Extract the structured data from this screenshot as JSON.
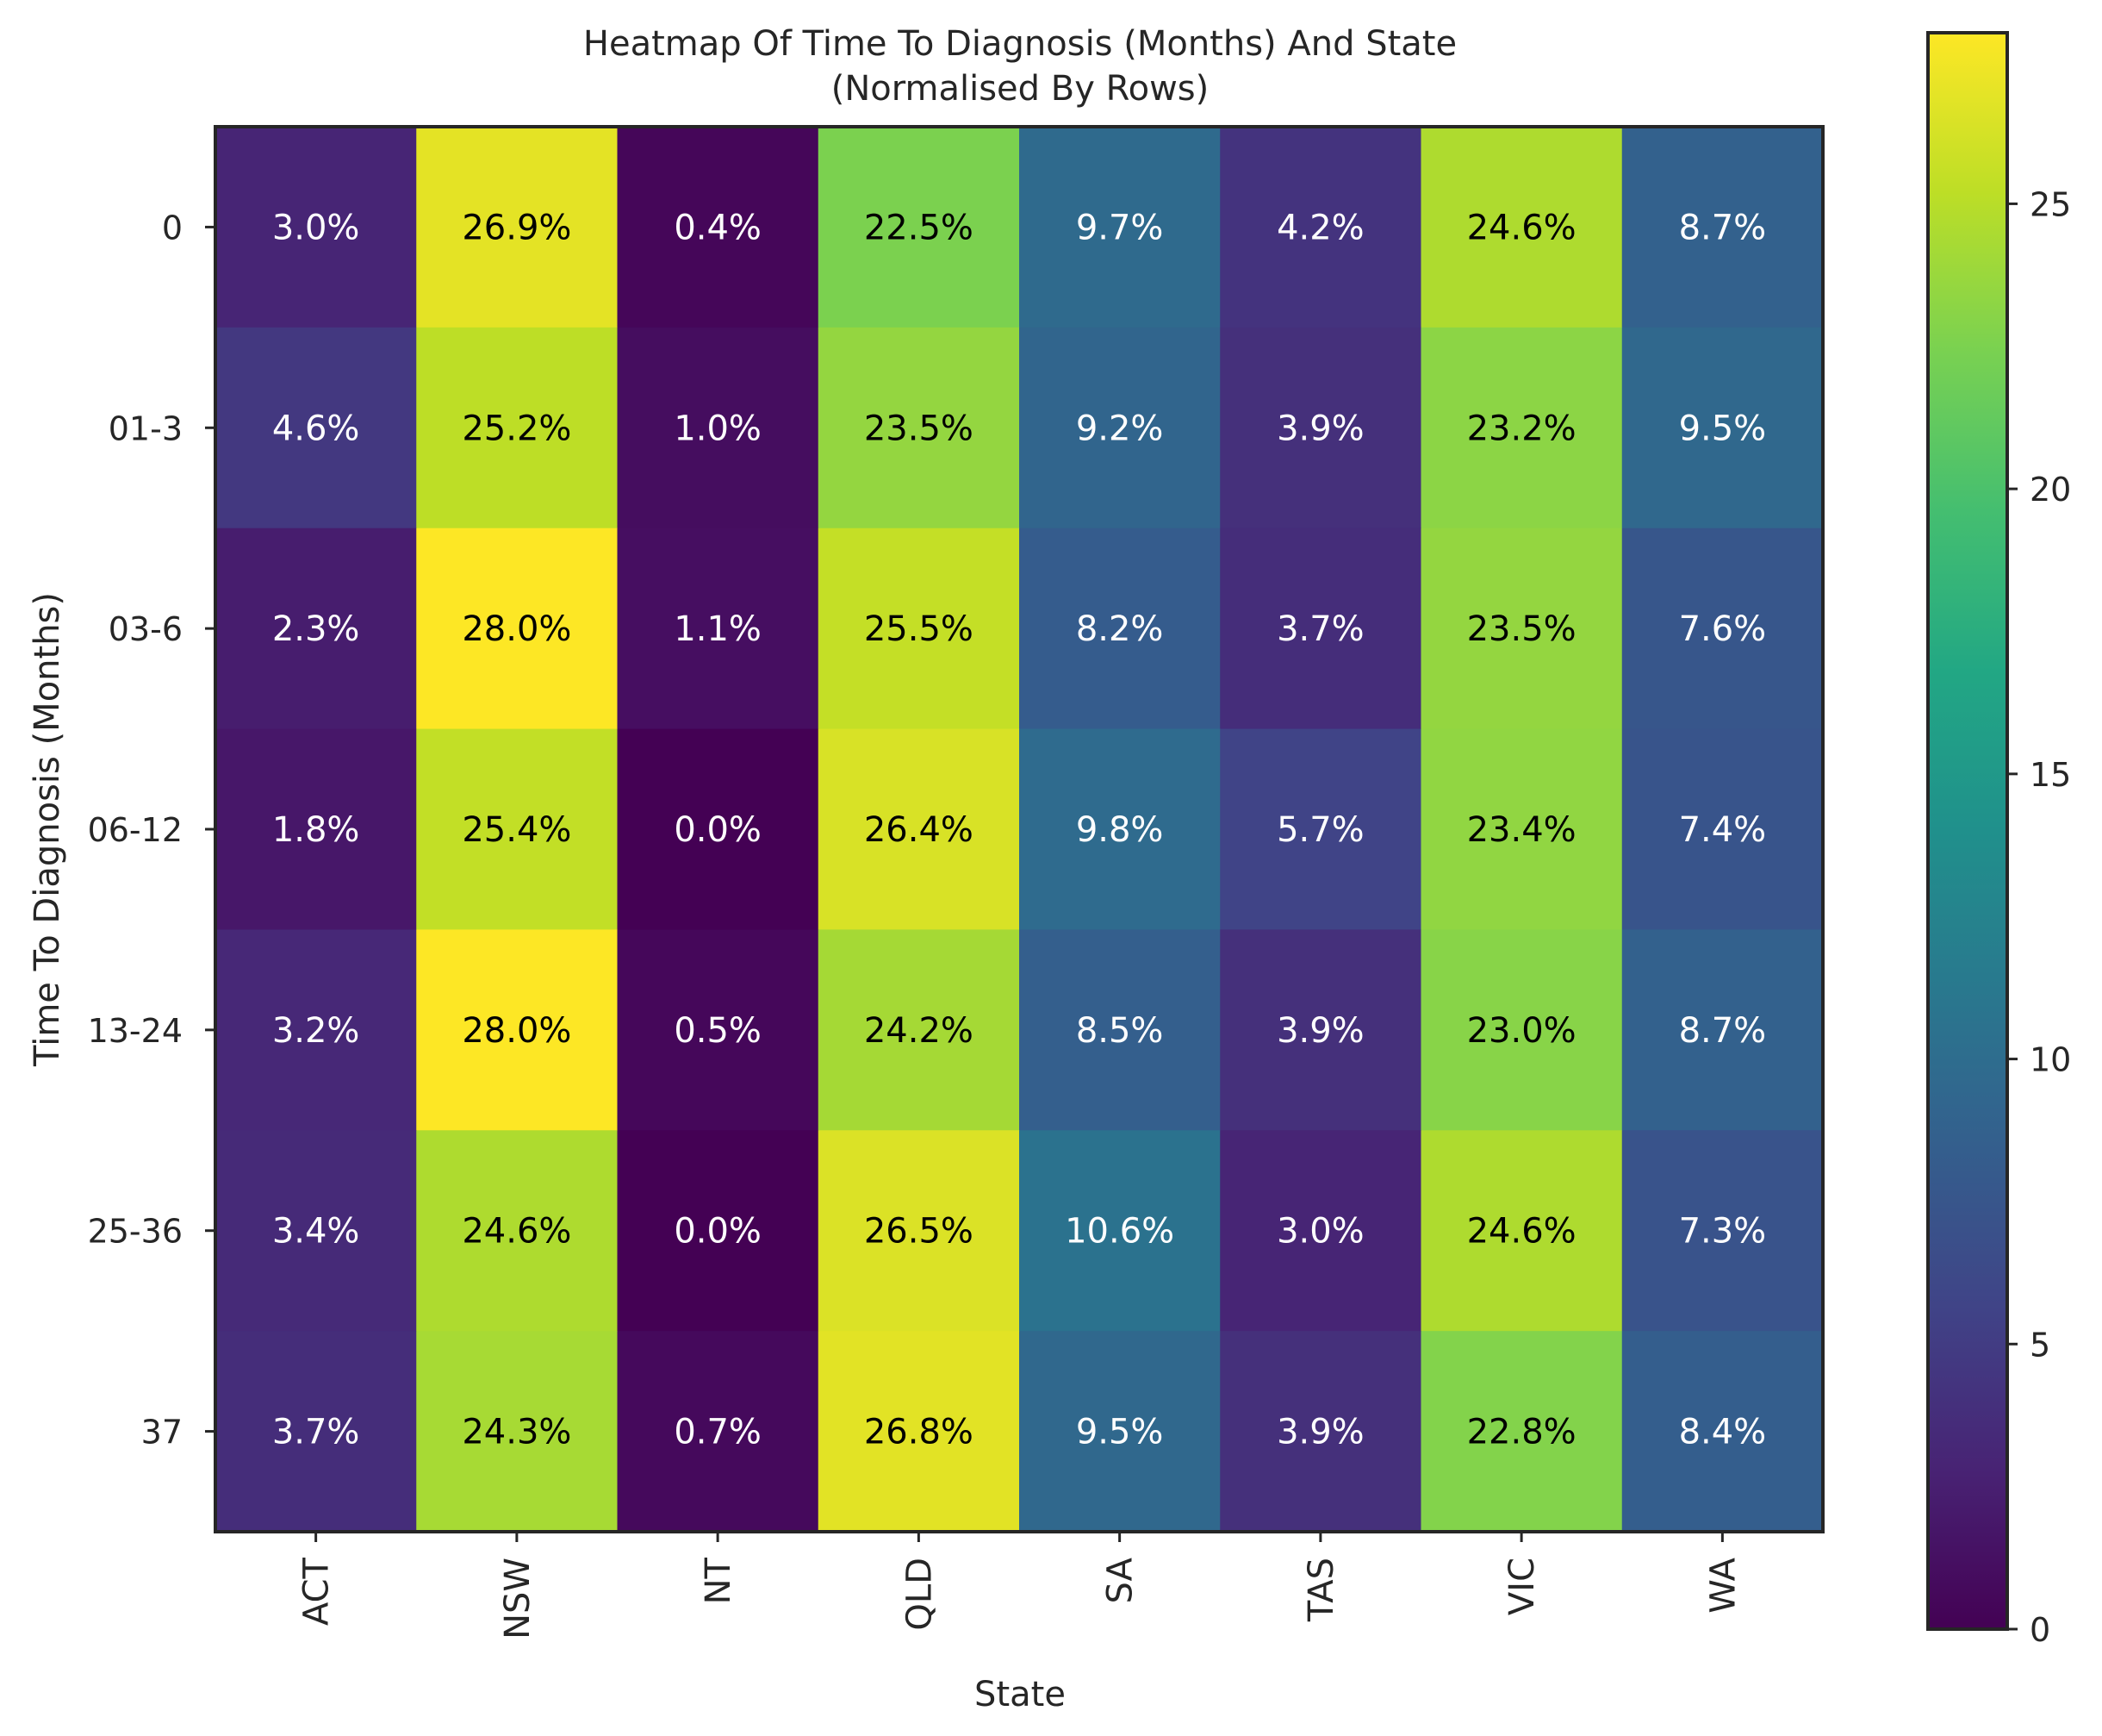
{
  "chart_data": {
    "type": "heatmap",
    "title": "Heatmap Of Time To Diagnosis (Months) And State",
    "subtitle": "(Normalised By Rows)",
    "xlabel": "State",
    "ylabel": "Time To Diagnosis (Months)",
    "x_categories": [
      "ACT",
      "NSW",
      "NT",
      "QLD",
      "SA",
      "TAS",
      "VIC",
      "WA"
    ],
    "y_categories": [
      "0",
      "01-3",
      "03-6",
      "06-12",
      "13-24",
      "25-36",
      "37"
    ],
    "values": [
      [
        3.0,
        26.9,
        0.4,
        22.5,
        9.7,
        4.2,
        24.6,
        8.7
      ],
      [
        4.6,
        25.2,
        1.0,
        23.5,
        9.2,
        3.9,
        23.2,
        9.5
      ],
      [
        2.3,
        28.0,
        1.1,
        25.5,
        8.2,
        3.7,
        23.5,
        7.6
      ],
      [
        1.8,
        25.4,
        0.0,
        26.4,
        9.8,
        5.7,
        23.4,
        7.4
      ],
      [
        3.2,
        28.0,
        0.5,
        24.2,
        8.5,
        3.9,
        23.0,
        8.7
      ],
      [
        3.4,
        24.6,
        0.0,
        26.5,
        10.6,
        3.0,
        24.6,
        7.3
      ],
      [
        3.7,
        24.3,
        0.7,
        26.8,
        9.5,
        3.9,
        22.8,
        8.4
      ]
    ],
    "value_format": "{v}%",
    "colormap": "viridis",
    "colorbar": {
      "min": 0,
      "max": 28.0,
      "ticks": [
        0,
        5,
        10,
        15,
        20,
        25
      ]
    },
    "grid": false,
    "colors": {
      "text_light": "#ffffff",
      "text_dark": "#000000",
      "axis": "#262626"
    }
  }
}
